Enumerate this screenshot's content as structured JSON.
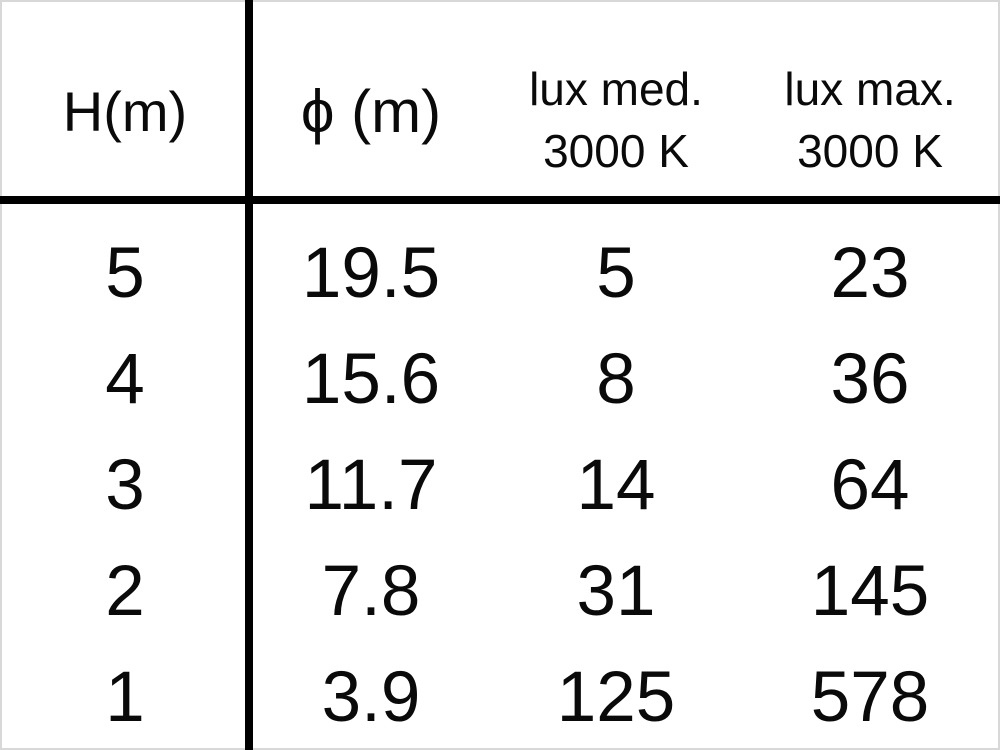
{
  "table": {
    "columns": [
      {
        "label": "H(m)",
        "sublabel": ""
      },
      {
        "label": "ϕ (m)",
        "sublabel": ""
      },
      {
        "label": "lux med.",
        "sublabel": "3000 K"
      },
      {
        "label": "lux max.",
        "sublabel": "3000 K"
      }
    ],
    "rows": [
      [
        "5",
        "19.5",
        "5",
        "23"
      ],
      [
        "4",
        "15.6",
        "8",
        "36"
      ],
      [
        "3",
        "11.7",
        "14",
        "64"
      ],
      [
        "2",
        "7.8",
        "31",
        "145"
      ],
      [
        "1",
        "3.9",
        "125",
        "578"
      ]
    ]
  },
  "colors": {
    "text": "#0a0a0a",
    "rule": "#000000",
    "background": "#ffffff"
  }
}
